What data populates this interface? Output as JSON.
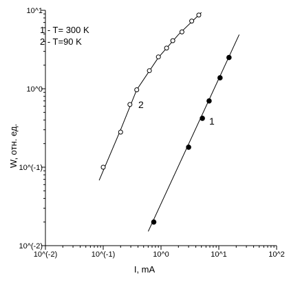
{
  "chart_data": {
    "type": "scatter",
    "x_scale": "log",
    "y_scale": "log",
    "xlim": [
      0.01,
      100
    ],
    "ylim": [
      0.01,
      10
    ],
    "xlabel": "I, mA",
    "ylabel": "W, отн. ед.",
    "x_tick_values": [
      0.01,
      0.1,
      1,
      10,
      100
    ],
    "x_tick_labels": [
      "10^(-2)",
      "10^(-1)",
      "10^0",
      "10^1",
      "10^2"
    ],
    "y_tick_values": [
      0.01,
      0.1,
      1,
      10
    ],
    "y_tick_labels": [
      "10^(-2)",
      "10^(-1)",
      "10^0",
      "10^1"
    ],
    "legend": [
      "1 - T= 300 K",
      "2 - T=90 K"
    ],
    "legend_position": "top-left",
    "grid": false,
    "series": [
      {
        "name": "1",
        "marker": "filled-circle",
        "points": [
          [
            0.75,
            0.02
          ],
          [
            3.0,
            0.18
          ],
          [
            5.2,
            0.42
          ],
          [
            6.8,
            0.7
          ],
          [
            10.5,
            1.38
          ],
          [
            15.0,
            2.5
          ]
        ],
        "fit_line": [
          [
            0.6,
            0.0152
          ],
          [
            22.5,
            4.9
          ]
        ]
      },
      {
        "name": "2",
        "marker": "open-circle",
        "points": [
          [
            0.1,
            0.1
          ],
          [
            0.2,
            0.28
          ],
          [
            0.29,
            0.63
          ],
          [
            0.38,
            0.97
          ],
          [
            0.63,
            1.7
          ],
          [
            0.9,
            2.55
          ],
          [
            1.25,
            3.3
          ],
          [
            1.6,
            4.1
          ],
          [
            2.3,
            5.3
          ],
          [
            3.4,
            7.3
          ],
          [
            4.5,
            8.7
          ]
        ],
        "fit_line": [
          [
            0.085,
            0.068
          ],
          [
            0.2,
            0.3
          ],
          [
            0.38,
            0.97
          ],
          [
            0.9,
            2.5
          ],
          [
            2.0,
            4.9
          ],
          [
            5.0,
            9.4
          ]
        ]
      }
    ]
  }
}
